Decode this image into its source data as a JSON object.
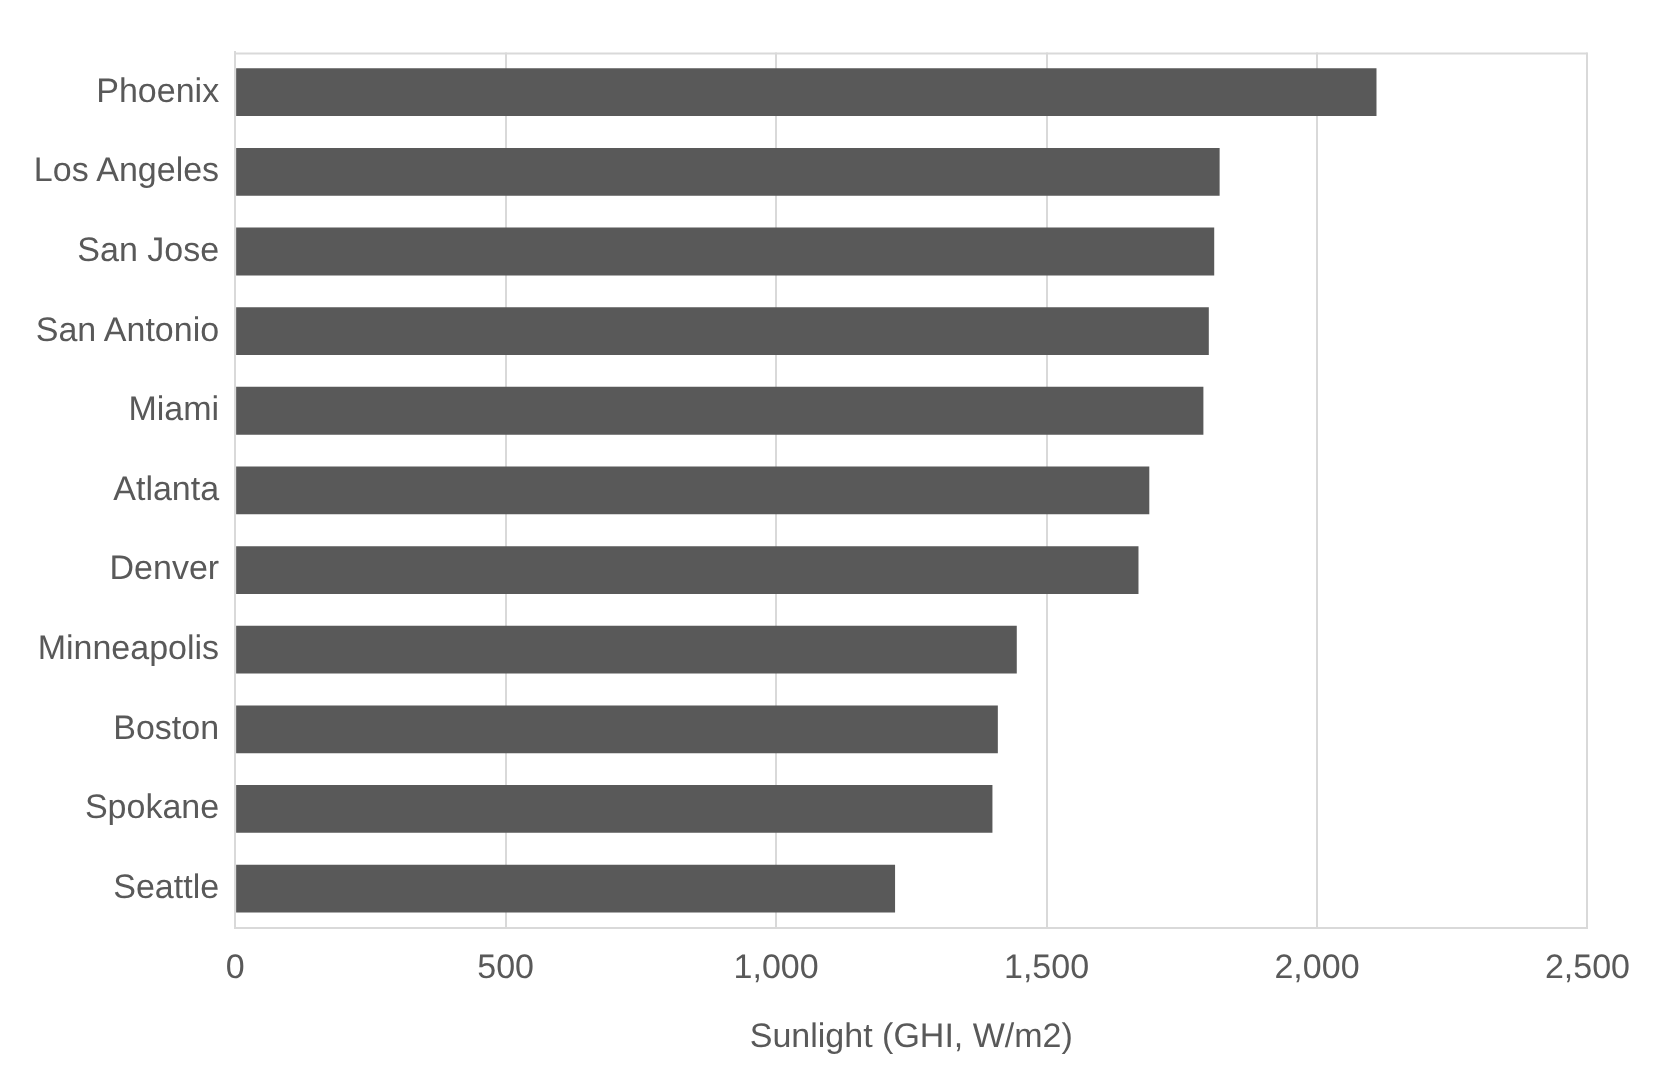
{
  "chart_data": {
    "type": "bar",
    "orientation": "horizontal",
    "xlabel": "Sunlight (GHI, W/m2)",
    "categories": [
      "Phoenix",
      "Los Angeles",
      "San Jose",
      "San Antonio",
      "Miami",
      "Atlanta",
      "Denver",
      "Minneapolis",
      "Boston",
      "Spokane",
      "Seattle"
    ],
    "values": [
      2110,
      1820,
      1810,
      1800,
      1790,
      1690,
      1670,
      1445,
      1410,
      1400,
      1220
    ],
    "color": "#595959",
    "xlim": [
      0,
      2500
    ],
    "xticks": [
      0,
      {
        "value": 500,
        "label": "500"
      },
      {
        "value": 1000,
        "label": "1,000"
      },
      {
        "value": 1500,
        "label": "1,500"
      },
      {
        "value": 2000,
        "label": "2,000"
      },
      {
        "value": 2500,
        "label": "2,500"
      }
    ],
    "grid": "x",
    "legend": false
  }
}
